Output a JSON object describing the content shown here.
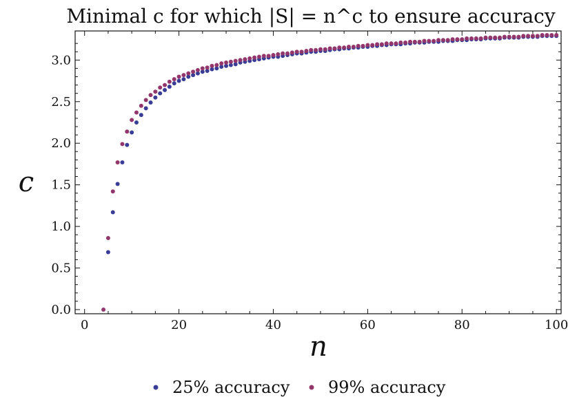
{
  "chart_data": {
    "type": "scatter",
    "title": "Minimal c for which |S| = n^c to ensure accuracy",
    "xlabel": "n",
    "ylabel": "c",
    "xlim": [
      -2,
      101
    ],
    "ylim": [
      -0.05,
      3.35
    ],
    "xticks": [
      "0",
      "20",
      "40",
      "60",
      "80",
      "100"
    ],
    "yticks": [
      "0.0",
      "0.5",
      "1.0",
      "1.5",
      "2.0",
      "2.5",
      "3.0"
    ],
    "grid": false,
    "legend_position": "bottom",
    "series": [
      {
        "name": "25% accuracy",
        "color": "#3a3d96",
        "x": [
          5,
          6,
          7,
          8,
          9,
          10,
          11,
          12,
          13,
          14,
          15,
          16,
          17,
          18,
          19,
          20,
          21,
          22,
          23,
          24,
          25,
          26,
          27,
          28,
          29,
          30,
          31,
          32,
          33,
          34,
          35,
          36,
          37,
          38,
          39,
          40,
          41,
          42,
          43,
          44,
          45,
          46,
          47,
          48,
          49,
          50,
          51,
          52,
          53,
          54,
          55,
          56,
          57,
          58,
          59,
          60,
          61,
          62,
          63,
          64,
          65,
          66,
          67,
          68,
          69,
          70,
          71,
          72,
          73,
          74,
          75,
          76,
          77,
          78,
          79,
          80,
          81,
          82,
          83,
          84,
          85,
          86,
          87,
          88,
          89,
          90,
          91,
          92,
          93,
          94,
          95,
          96,
          97,
          98,
          99,
          100
        ],
        "y": [
          0.69,
          1.17,
          1.51,
          1.77,
          1.98,
          2.13,
          2.25,
          2.34,
          2.42,
          2.49,
          2.55,
          2.6,
          2.64,
          2.68,
          2.72,
          2.75,
          2.77,
          2.8,
          2.82,
          2.84,
          2.86,
          2.87,
          2.89,
          2.9,
          2.92,
          2.93,
          2.94,
          2.95,
          2.97,
          2.98,
          2.99,
          3.0,
          3.01,
          3.02,
          3.03,
          3.04,
          3.04,
          3.05,
          3.06,
          3.07,
          3.08,
          3.08,
          3.09,
          3.1,
          3.1,
          3.11,
          3.11,
          3.12,
          3.13,
          3.13,
          3.14,
          3.14,
          3.15,
          3.15,
          3.16,
          3.16,
          3.17,
          3.17,
          3.18,
          3.18,
          3.19,
          3.19,
          3.19,
          3.2,
          3.2,
          3.21,
          3.21,
          3.21,
          3.22,
          3.22,
          3.22,
          3.23,
          3.23,
          3.23,
          3.24,
          3.24,
          3.24,
          3.25,
          3.25,
          3.25,
          3.26,
          3.26,
          3.26,
          3.26,
          3.27,
          3.27,
          3.27,
          3.27,
          3.28,
          3.28,
          3.28,
          3.28,
          3.29,
          3.29,
          3.29,
          3.29
        ]
      },
      {
        "name": "99% accuracy",
        "color": "#93366c",
        "x": [
          4,
          5,
          6,
          7,
          8,
          9,
          10,
          11,
          12,
          13,
          14,
          15,
          16,
          17,
          18,
          19,
          20,
          21,
          22,
          23,
          24,
          25,
          26,
          27,
          28,
          29,
          30,
          31,
          32,
          33,
          34,
          35,
          36,
          37,
          38,
          39,
          40,
          41,
          42,
          43,
          44,
          45,
          46,
          47,
          48,
          49,
          50,
          51,
          52,
          53,
          54,
          55,
          56,
          57,
          58,
          59,
          60,
          61,
          62,
          63,
          64,
          65,
          66,
          67,
          68,
          69,
          70,
          71,
          72,
          73,
          74,
          75,
          76,
          77,
          78,
          79,
          80,
          81,
          82,
          83,
          84,
          85,
          86,
          87,
          88,
          89,
          90,
          91,
          92,
          93,
          94,
          95,
          96,
          97,
          98,
          99,
          100
        ],
        "y": [
          0.0,
          0.86,
          1.42,
          1.77,
          1.99,
          2.14,
          2.28,
          2.37,
          2.45,
          2.52,
          2.58,
          2.62,
          2.67,
          2.7,
          2.74,
          2.77,
          2.8,
          2.82,
          2.84,
          2.86,
          2.88,
          2.9,
          2.91,
          2.93,
          2.94,
          2.96,
          2.97,
          2.98,
          2.99,
          3.0,
          3.01,
          3.02,
          3.03,
          3.04,
          3.05,
          3.05,
          3.06,
          3.07,
          3.08,
          3.08,
          3.09,
          3.1,
          3.1,
          3.11,
          3.12,
          3.12,
          3.13,
          3.13,
          3.14,
          3.14,
          3.15,
          3.15,
          3.16,
          3.16,
          3.17,
          3.17,
          3.18,
          3.18,
          3.19,
          3.19,
          3.2,
          3.2,
          3.2,
          3.21,
          3.21,
          3.22,
          3.22,
          3.22,
          3.23,
          3.23,
          3.23,
          3.24,
          3.24,
          3.24,
          3.25,
          3.25,
          3.25,
          3.26,
          3.26,
          3.26,
          3.26,
          3.27,
          3.27,
          3.27,
          3.27,
          3.28,
          3.28,
          3.28,
          3.28,
          3.29,
          3.29,
          3.29,
          3.29,
          3.3,
          3.3,
          3.3,
          3.3
        ]
      }
    ]
  }
}
